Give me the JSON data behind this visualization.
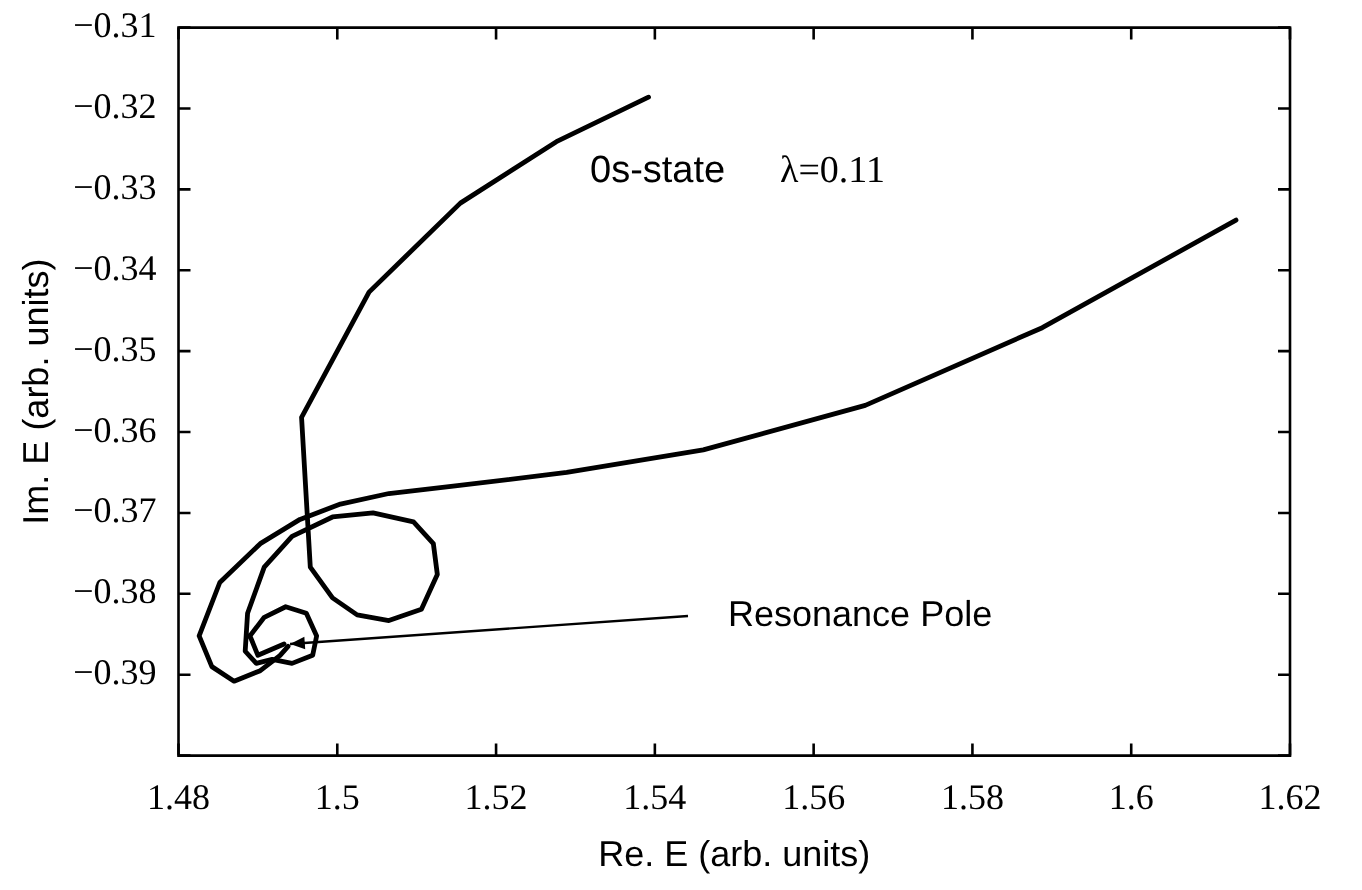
{
  "chart_data": {
    "type": "line",
    "xlabel": "Re. E (arb. units)",
    "ylabel": "Im. E (arb. units)",
    "xlim": [
      1.48,
      1.62
    ],
    "xticks": [
      {
        "value": 1.48,
        "label": "1.48"
      },
      {
        "value": 1.5,
        "label": "1.5"
      },
      {
        "value": 1.52,
        "label": "1.52"
      },
      {
        "value": 1.54,
        "label": "1.54"
      },
      {
        "value": 1.56,
        "label": "1.56"
      },
      {
        "value": 1.58,
        "label": "1.58"
      },
      {
        "value": 1.6,
        "label": "1.6"
      },
      {
        "value": 1.62,
        "label": "1.62"
      }
    ],
    "ylim": [
      -0.4,
      -0.31
    ],
    "yticks": [
      {
        "value": -0.31,
        "label": "−0.31"
      },
      {
        "value": -0.32,
        "label": "−0.32"
      },
      {
        "value": -0.33,
        "label": "−0.33"
      },
      {
        "value": -0.34,
        "label": "−0.34"
      },
      {
        "value": -0.35,
        "label": "−0.35"
      },
      {
        "value": -0.36,
        "label": "−0.36"
      },
      {
        "value": -0.37,
        "label": "−0.37"
      },
      {
        "value": -0.38,
        "label": "−0.38"
      },
      {
        "value": -0.39,
        "label": "−0.39"
      },
      {
        "value": -0.4,
        "label": null
      }
    ],
    "marker": "none",
    "line_style": "solid",
    "series": [
      {
        "color": "#000000",
        "x": [
          1.5392,
          1.5276,
          1.5155,
          1.504,
          1.4955,
          1.4966,
          1.4994,
          1.5025,
          1.5065,
          1.5106,
          1.5126,
          1.5121,
          1.5096,
          1.5045,
          1.4994,
          1.4943,
          1.4908,
          1.4887,
          1.4884,
          1.4898,
          1.4918,
          1.4943,
          1.4969,
          1.4974,
          1.4961,
          1.4935,
          1.4908,
          1.489,
          1.49,
          1.4933
        ],
        "values": [
          -0.3186,
          -0.3241,
          -0.3317,
          -0.3427,
          -0.3582,
          -0.3767,
          -0.3805,
          -0.3826,
          -0.3833,
          -0.3819,
          -0.3776,
          -0.3738,
          -0.3711,
          -0.37,
          -0.3705,
          -0.3729,
          -0.3767,
          -0.3824,
          -0.3871,
          -0.3886,
          -0.3881,
          -0.3886,
          -0.3876,
          -0.3852,
          -0.3824,
          -0.3816,
          -0.3829,
          -0.3852,
          -0.3876,
          -0.3862
        ]
      },
      {
        "color": "#000000",
        "x": [
          1.6132,
          1.5888,
          1.5665,
          1.5461,
          1.5289,
          1.5146,
          1.5065,
          1.5004,
          1.4953,
          1.4903,
          1.4852,
          1.4826,
          1.4842,
          1.487,
          1.4903,
          1.4928,
          1.4938
        ],
        "values": [
          -0.3338,
          -0.3471,
          -0.3567,
          -0.3622,
          -0.365,
          -0.3667,
          -0.3676,
          -0.3689,
          -0.3708,
          -0.3738,
          -0.3786,
          -0.3852,
          -0.389,
          -0.3908,
          -0.3895,
          -0.3876,
          -0.3865
        ]
      }
    ],
    "annotations": [
      "0s-state",
      "λ=0.11",
      {
        "text": "Resonance Pole",
        "x": 1.4933,
        "y": -0.3862
      }
    ]
  }
}
